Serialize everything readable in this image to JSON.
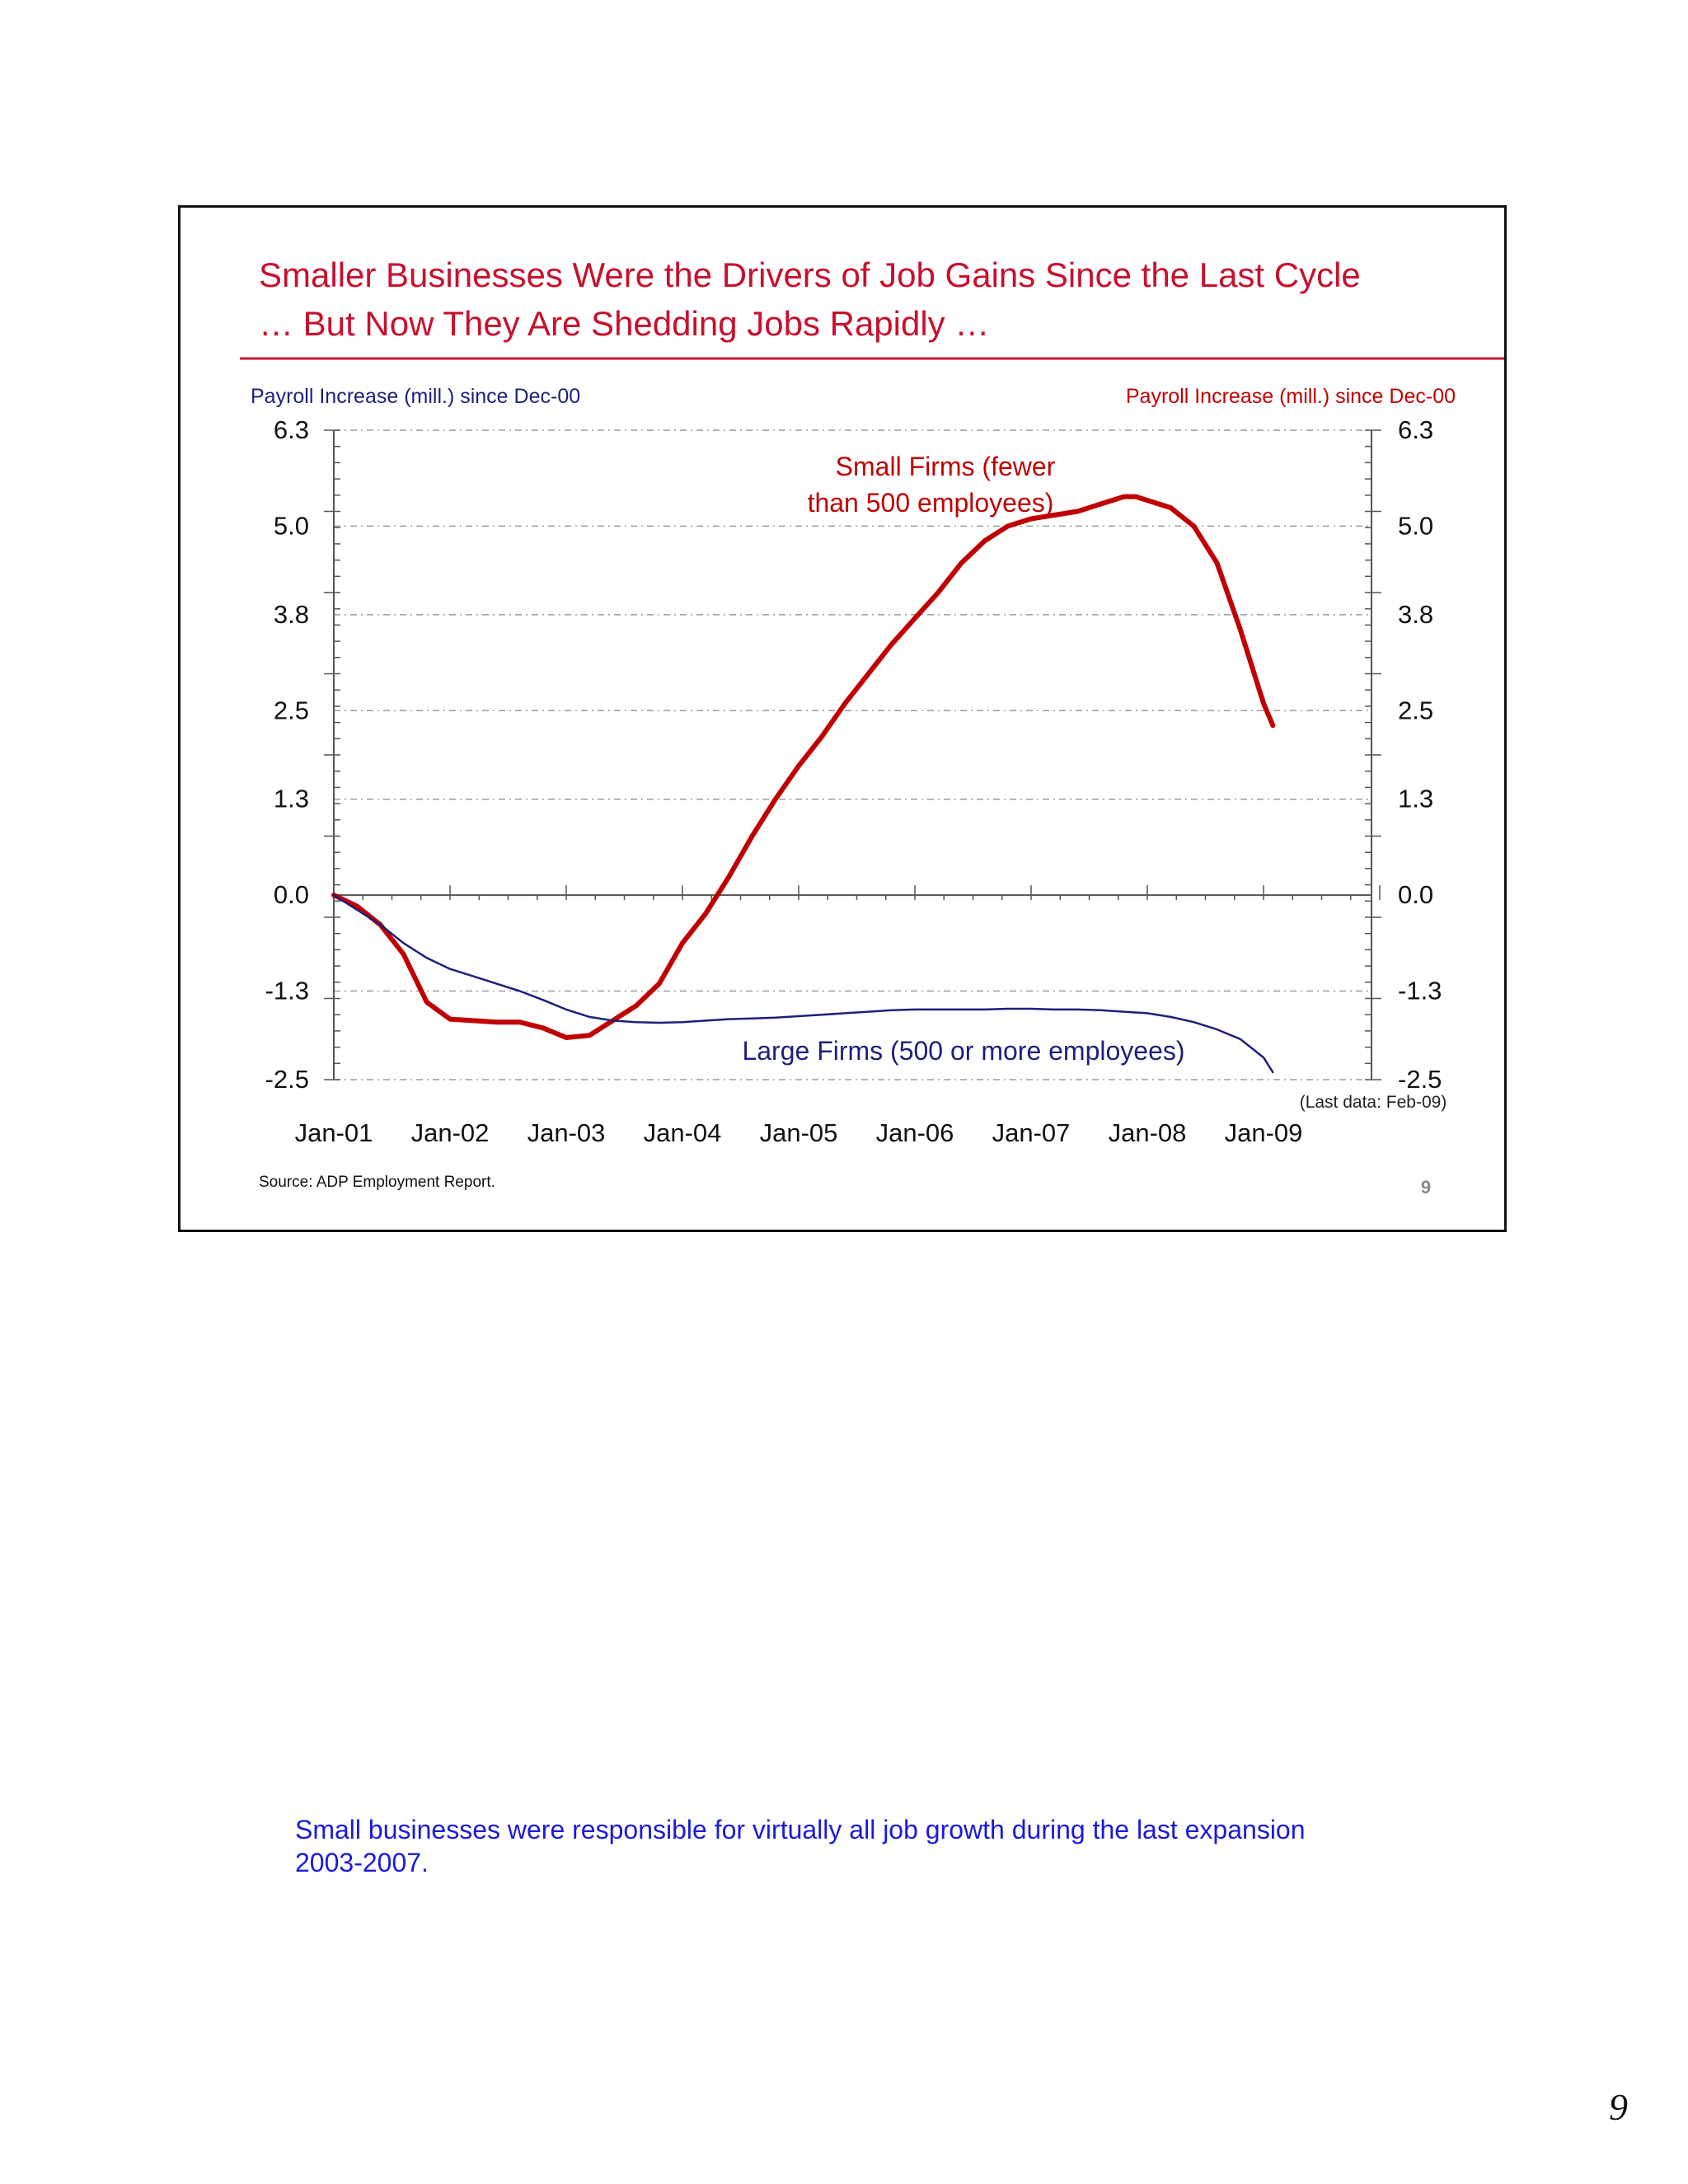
{
  "slide": {
    "title_line1": "Smaller Businesses Were the Drivers of Job Gains Since the Last Cycle",
    "title_line2": "… But Now They Are Shedding Jobs Rapidly …",
    "source": "Source: ADP Employment Report.",
    "slide_number": "9",
    "title_color": "#c8102e"
  },
  "notes": {
    "line1": "Small businesses were responsible for virtually all job growth during the last expansion",
    "line2": "2003-2007."
  },
  "page_number": "9",
  "chart_data": {
    "type": "line",
    "title": "Smaller Businesses Were the Drivers of Job Gains Since the Last Cycle … But Now They Are Shedding Jobs Rapidly …",
    "ylabel_left": "Payroll Increase (mill.) since Dec-00",
    "ylabel_right": "Payroll Increase (mill.) since Dec-00",
    "ylim": [
      -2.5,
      6.3
    ],
    "y_ticks": [
      6.3,
      5.0,
      3.8,
      2.5,
      1.3,
      0.0,
      -1.3,
      -2.5
    ],
    "y_tick_labels": [
      "6.3",
      "5.0",
      "3.8",
      "2.5",
      "1.3",
      "0.0",
      "-1.3",
      "-2.5"
    ],
    "x_range": [
      2001.0,
      2010.0
    ],
    "x_ticks": [
      2001,
      2002,
      2003,
      2004,
      2005,
      2006,
      2007,
      2008,
      2009
    ],
    "x_tick_labels": [
      "Jan-01",
      "Jan-02",
      "Jan-03",
      "Jan-04",
      "Jan-05",
      "Jan-06",
      "Jan-07",
      "Jan-08",
      "Jan-09"
    ],
    "grid": true,
    "note": "(Last data: Feb-09)",
    "series": [
      {
        "name": "Small Firms (fewer than 500 employees)",
        "label_line1": "Small Firms (fewer",
        "label_line2": "than 500 employees)",
        "color": "#c00000",
        "x": [
          2001.0,
          2001.2,
          2001.4,
          2001.6,
          2001.8,
          2002.0,
          2002.2,
          2002.4,
          2002.6,
          2002.8,
          2003.0,
          2003.2,
          2003.4,
          2003.6,
          2003.8,
          2004.0,
          2004.2,
          2004.4,
          2004.6,
          2004.8,
          2005.0,
          2005.2,
          2005.4,
          2005.6,
          2005.8,
          2006.0,
          2006.2,
          2006.4,
          2006.6,
          2006.8,
          2007.0,
          2007.2,
          2007.4,
          2007.6,
          2007.8,
          2007.9,
          2008.0,
          2008.2,
          2008.4,
          2008.6,
          2008.8,
          2009.0,
          2009.08
        ],
        "values": [
          0.0,
          -0.15,
          -0.4,
          -0.8,
          -1.45,
          -1.68,
          -1.7,
          -1.72,
          -1.72,
          -1.8,
          -1.93,
          -1.9,
          -1.7,
          -1.5,
          -1.2,
          -0.65,
          -0.25,
          0.25,
          0.8,
          1.3,
          1.75,
          2.15,
          2.6,
          3.0,
          3.4,
          3.75,
          4.1,
          4.5,
          4.8,
          5.0,
          5.1,
          5.15,
          5.2,
          5.3,
          5.4,
          5.4,
          5.35,
          5.25,
          5.0,
          4.5,
          3.6,
          2.6,
          2.3
        ]
      },
      {
        "name": "Large Firms (500 or more employees)",
        "label": "Large Firms (500 or more employees)",
        "color": "#1f1f7a",
        "x": [
          2001.0,
          2001.2,
          2001.4,
          2001.6,
          2001.8,
          2002.0,
          2002.2,
          2002.4,
          2002.6,
          2002.8,
          2003.0,
          2003.2,
          2003.4,
          2003.6,
          2003.8,
          2004.0,
          2004.2,
          2004.4,
          2004.6,
          2004.8,
          2005.0,
          2005.2,
          2005.4,
          2005.6,
          2005.8,
          2006.0,
          2006.2,
          2006.4,
          2006.6,
          2006.8,
          2007.0,
          2007.2,
          2007.4,
          2007.6,
          2007.8,
          2008.0,
          2008.2,
          2008.4,
          2008.6,
          2008.8,
          2009.0,
          2009.08
        ],
        "values": [
          0.0,
          -0.2,
          -0.4,
          -0.65,
          -0.85,
          -1.0,
          -1.1,
          -1.2,
          -1.3,
          -1.42,
          -1.55,
          -1.65,
          -1.7,
          -1.72,
          -1.73,
          -1.72,
          -1.7,
          -1.68,
          -1.67,
          -1.66,
          -1.64,
          -1.62,
          -1.6,
          -1.58,
          -1.56,
          -1.55,
          -1.55,
          -1.55,
          -1.55,
          -1.54,
          -1.54,
          -1.55,
          -1.55,
          -1.56,
          -1.58,
          -1.6,
          -1.65,
          -1.72,
          -1.82,
          -1.95,
          -2.2,
          -2.4
        ]
      }
    ]
  }
}
